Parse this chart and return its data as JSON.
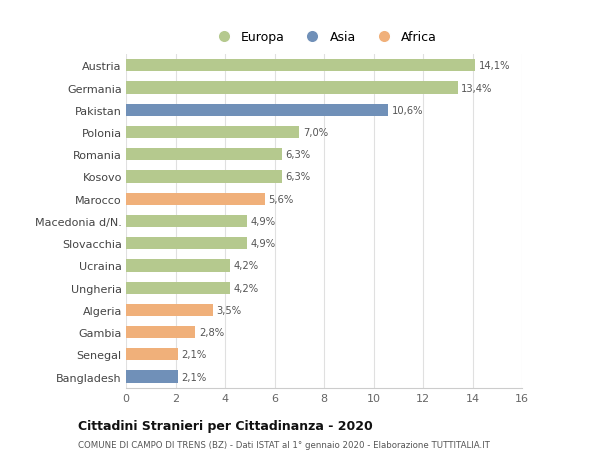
{
  "categories": [
    "Austria",
    "Germania",
    "Pakistan",
    "Polonia",
    "Romania",
    "Kosovo",
    "Marocco",
    "Macedonia d/N.",
    "Slovacchia",
    "Ucraina",
    "Ungheria",
    "Algeria",
    "Gambia",
    "Senegal",
    "Bangladesh"
  ],
  "values": [
    14.1,
    13.4,
    10.6,
    7.0,
    6.3,
    6.3,
    5.6,
    4.9,
    4.9,
    4.2,
    4.2,
    3.5,
    2.8,
    2.1,
    2.1
  ],
  "labels": [
    "14,1%",
    "13,4%",
    "10,6%",
    "7,0%",
    "6,3%",
    "6,3%",
    "5,6%",
    "4,9%",
    "4,9%",
    "4,2%",
    "4,2%",
    "3,5%",
    "2,8%",
    "2,1%",
    "2,1%"
  ],
  "continents": [
    "Europa",
    "Europa",
    "Asia",
    "Europa",
    "Europa",
    "Europa",
    "Africa",
    "Europa",
    "Europa",
    "Europa",
    "Europa",
    "Africa",
    "Africa",
    "Africa",
    "Asia"
  ],
  "colors": {
    "Europa": "#b5c98e",
    "Asia": "#7090b8",
    "Africa": "#f0b07a"
  },
  "title_main": "Cittadini Stranieri per Cittadinanza - 2020",
  "title_sub": "COMUNE DI CAMPO DI TRENS (BZ) - Dati ISTAT al 1° gennaio 2020 - Elaborazione TUTTITALIA.IT",
  "xlim": [
    0,
    16
  ],
  "xticks": [
    0,
    2,
    4,
    6,
    8,
    10,
    12,
    14,
    16
  ],
  "background_color": "#ffffff",
  "grid_color": "#e0e0e0",
  "bar_height": 0.55
}
